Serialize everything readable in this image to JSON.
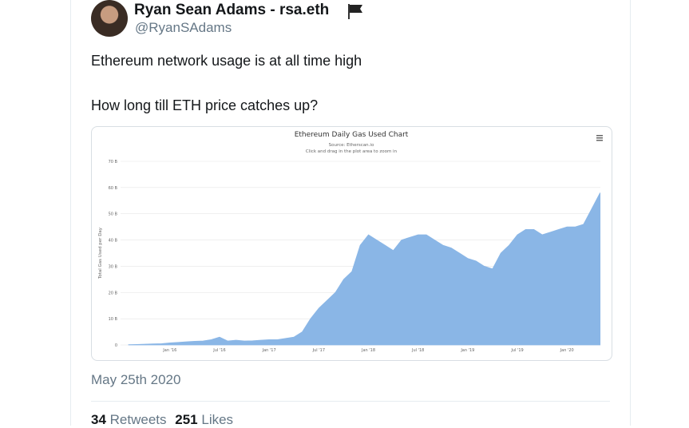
{
  "tweet": {
    "author": "Ryan Sean Adams - rsa.eth",
    "handle": "@RyanSAdams",
    "text": [
      "Ethereum network usage is at all time high",
      "How long till ETH price catches up?"
    ],
    "date": "May 25th 2020",
    "retweets": 34,
    "retweets_label": "Retweets",
    "likes": 251,
    "likes_label": "Likes"
  },
  "chart_data": {
    "type": "area",
    "title": "Ethereum Daily Gas Used Chart",
    "subtitle": "Source: Etherscan.io",
    "note": "Click and drag in the plot area to zoom in",
    "y_label": "Total Gas Used per Day",
    "color": "#8ab6e6",
    "categories": [
      null,
      null,
      null,
      null,
      null,
      "Jan '16",
      null,
      null,
      null,
      null,
      null,
      "Jul '16",
      null,
      null,
      null,
      null,
      null,
      "Jan '17",
      null,
      null,
      null,
      null,
      null,
      "Jul '17",
      null,
      null,
      null,
      null,
      null,
      "Jan '18",
      null,
      null,
      null,
      null,
      null,
      "Jul '18",
      null,
      null,
      null,
      null,
      null,
      "Jan '19",
      null,
      null,
      null,
      null,
      null,
      "Jul '19",
      null,
      null,
      null,
      null,
      null,
      "Jan '20",
      null,
      null,
      null,
      null
    ],
    "values": [
      0.1,
      0.2,
      0.3,
      0.4,
      0.5,
      0.8,
      1,
      1.2,
      1.4,
      1.5,
      2,
      3,
      1.5,
      1.8,
      1.5,
      1.6,
      1.8,
      2,
      2,
      2.5,
      3,
      5,
      10,
      14,
      17,
      20,
      25,
      28,
      38,
      42,
      40,
      38,
      36,
      40,
      41,
      42,
      42,
      40,
      38,
      37,
      35,
      33,
      32,
      30,
      29,
      35,
      38,
      42,
      44,
      44,
      42,
      43,
      44,
      45,
      45,
      46,
      52,
      58
    ],
    "ylim": [
      0,
      70
    ],
    "yticks": [
      0,
      {
        "value": 10,
        "label": "10 B"
      },
      {
        "value": 20,
        "label": "20 B"
      },
      {
        "value": 30,
        "label": "30 B"
      },
      {
        "value": 40,
        "label": "40 B"
      },
      {
        "value": 50,
        "label": "50 B"
      },
      {
        "value": 60,
        "label": "60 B"
      },
      {
        "value": 70,
        "label": "70 B"
      }
    ],
    "grid": true
  }
}
